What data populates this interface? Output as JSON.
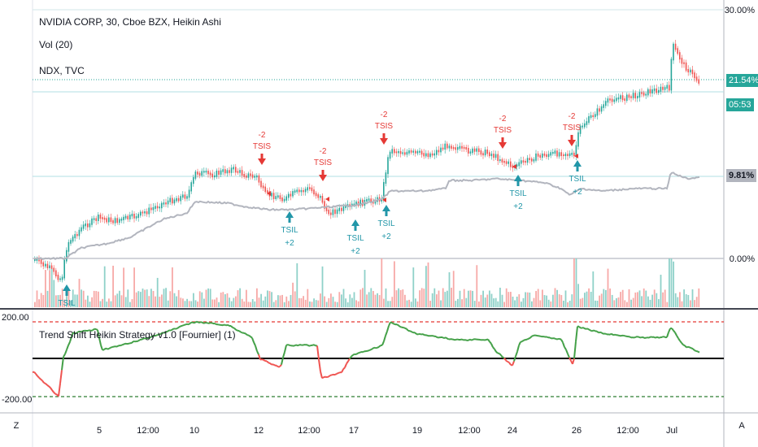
{
  "legend": {
    "main": "NVIDIA CORP, 30, Cboe BZX, Heikin Ashi",
    "vol": "Vol (20)",
    "ndx": "NDX, TVC"
  },
  "oscillator": {
    "title": "Trend Shift Heikin Strategy v1.0 [Fournier] (1)"
  },
  "price_axis": {
    "top": "30.00%",
    "mid": "0.00%"
  },
  "osc_axis": {
    "top": "200.00",
    "bottom": "-200.00"
  },
  "tags": {
    "nvda_pct": "21.54%",
    "countdown": "05:53",
    "ndx_pct": "9.81%"
  },
  "colors": {
    "up": "#26a69a",
    "down": "#ef5350",
    "ndx": "#b2b5be",
    "signal_long": "#2196a8",
    "signal_short": "#e53935"
  },
  "signals": [
    {
      "type": "short",
      "label": "TSIS",
      "size": "-2"
    },
    {
      "type": "short",
      "label": "TSIS",
      "size": "-2"
    },
    {
      "type": "short",
      "label": "TSIS",
      "size": "-2"
    },
    {
      "type": "short",
      "label": "TSIS",
      "size": "-2"
    },
    {
      "type": "short",
      "label": "TSIS",
      "size": "-2"
    },
    {
      "type": "long",
      "label": "TSIL",
      "size": ""
    },
    {
      "type": "long",
      "label": "TSIL",
      "size": "+2"
    },
    {
      "type": "long",
      "label": "TSIL",
      "size": "+2"
    },
    {
      "type": "long",
      "label": "TSIL",
      "size": "+2"
    },
    {
      "type": "long",
      "label": "TSIL",
      "size": "+2"
    },
    {
      "type": "long",
      "label": "TSIL",
      "size": "+2"
    }
  ],
  "time_axis": {
    "labels": [
      "5",
      "12:00",
      "10",
      "12",
      "12:00",
      "17",
      "19",
      "12:00",
      "24",
      "26",
      "12:00",
      "Jul"
    ]
  },
  "corner": {
    "left": "Z",
    "right": "A"
  }
}
